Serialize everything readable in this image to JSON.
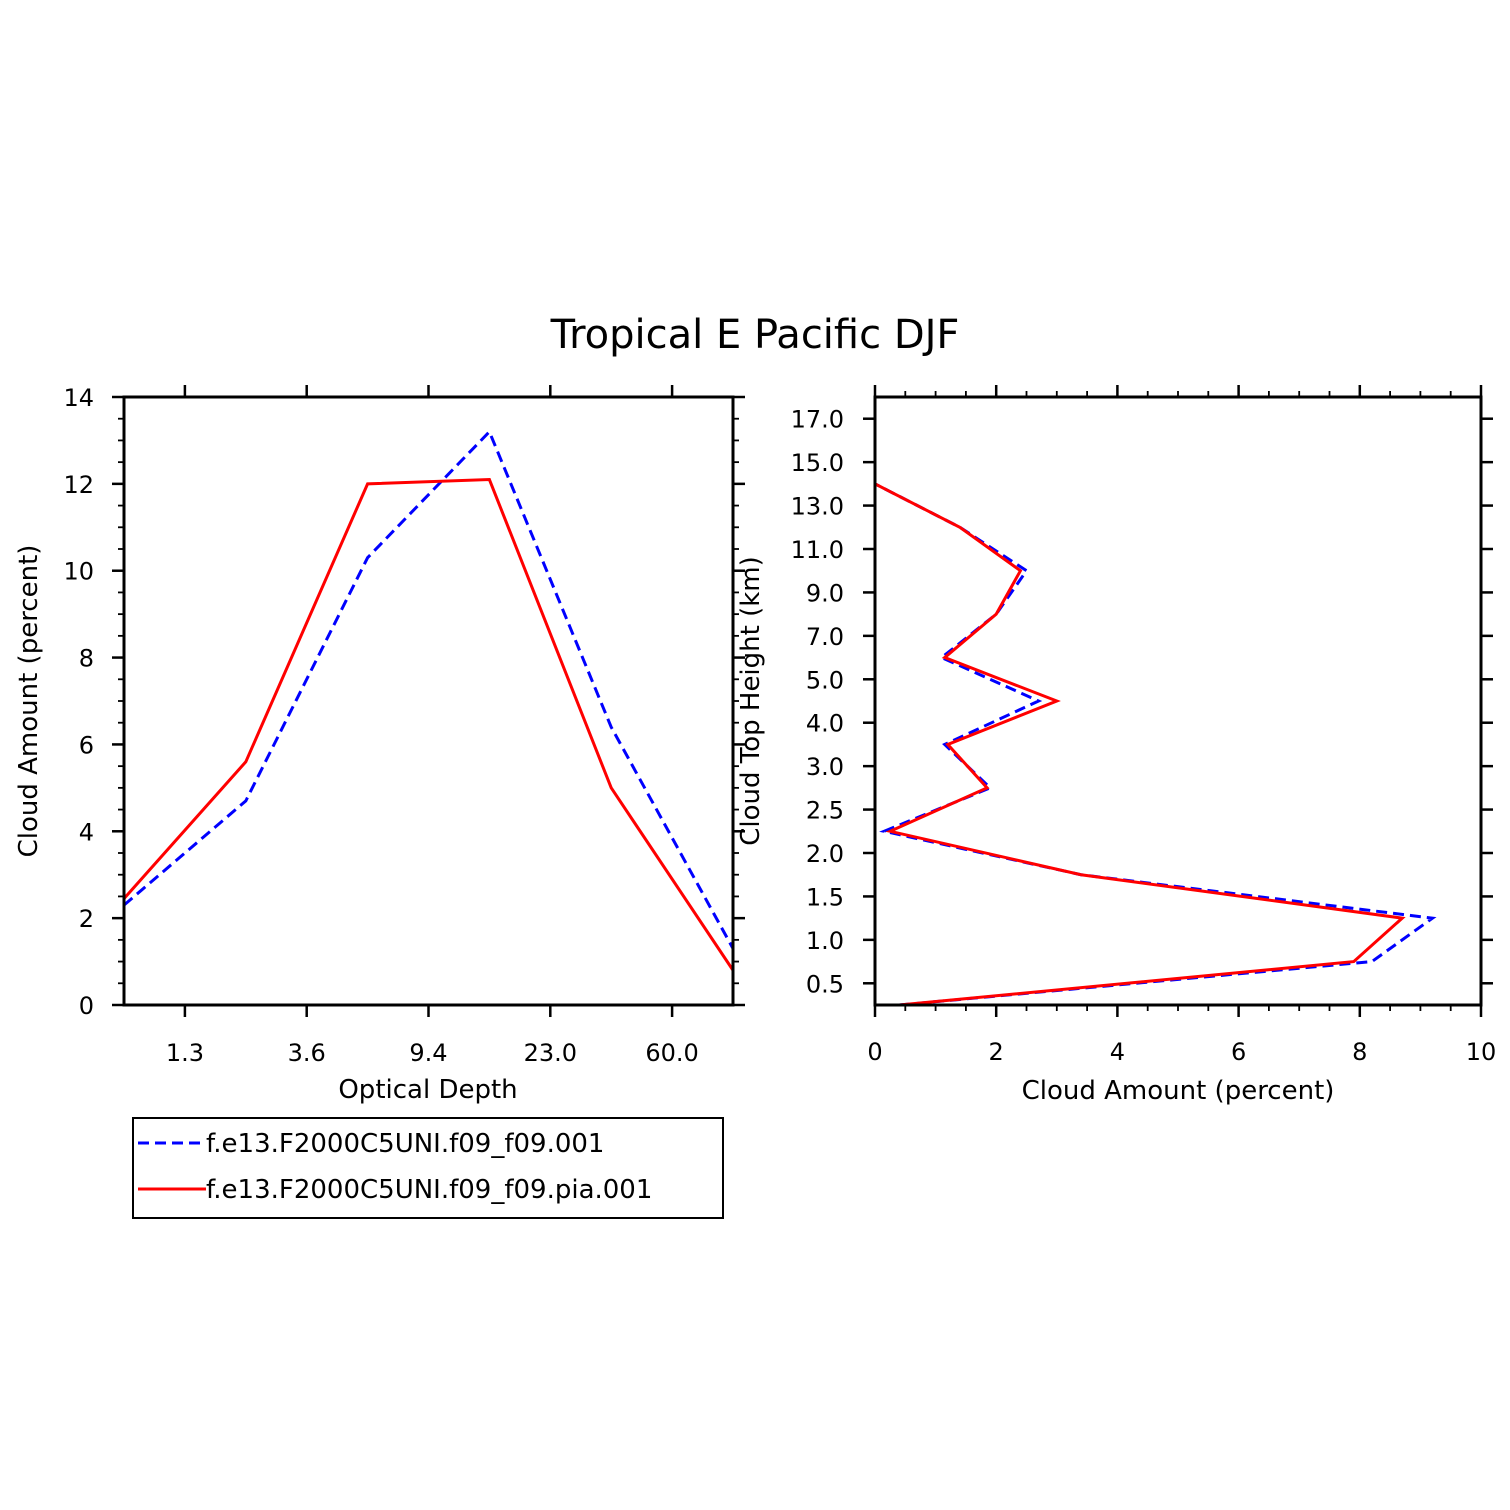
{
  "title": "Tropical E Pacific DJF",
  "colors": {
    "series_dashed": "#0000ff",
    "series_solid": "#ff0000",
    "axes": "#000000"
  },
  "chart_data": [
    {
      "type": "line",
      "name": "optical-depth-panel",
      "xlabel": "Optical Depth",
      "ylabel": "Cloud Amount (percent)",
      "x_index": [
        0,
        1,
        2,
        3,
        4,
        5
      ],
      "x_tick_labels": [
        {
          "at": 0.5,
          "label": "1.3"
        },
        {
          "at": 1.5,
          "label": "3.6"
        },
        {
          "at": 2.5,
          "label": "9.4"
        },
        {
          "at": 3.5,
          "label": "23.0"
        },
        {
          "at": 4.5,
          "label": "60.0"
        }
      ],
      "xlim": [
        0,
        5
      ],
      "ylim": [
        0,
        14
      ],
      "y_ticks": [
        0,
        2,
        4,
        6,
        8,
        10,
        12,
        14
      ],
      "series": [
        {
          "name": "f.e13.F2000C5UNI.f09_f09.001",
          "style": "dashed",
          "color": "#0000ff",
          "values": [
            2.3,
            4.7,
            10.3,
            13.2,
            6.4,
            1.3
          ]
        },
        {
          "name": "f.e13.F2000C5UNI.f09_f09.pia.001",
          "style": "solid",
          "color": "#ff0000",
          "values": [
            2.45,
            5.6,
            12.0,
            12.1,
            5.0,
            0.8
          ]
        }
      ],
      "legend": [
        {
          "label": "f.e13.F2000C5UNI.f09_f09.001",
          "style": "dashed",
          "color": "#0000ff"
        },
        {
          "label": "f.e13.F2000C5UNI.f09_f09.pia.001",
          "style": "solid",
          "color": "#ff0000"
        }
      ]
    },
    {
      "type": "line",
      "name": "cloud-top-height-panel",
      "xlabel": "Cloud Amount (percent)",
      "ylabel": "Cloud Top Height (km)",
      "xlim": [
        0,
        10
      ],
      "x_ticks": [
        0,
        2,
        4,
        6,
        8,
        10
      ],
      "ylim": [
        0,
        14
      ],
      "y_tick_labels": [
        {
          "at": 0.5,
          "label": "0.5"
        },
        {
          "at": 1.5,
          "label": "1.0"
        },
        {
          "at": 2.5,
          "label": "1.5"
        },
        {
          "at": 3.5,
          "label": "2.0"
        },
        {
          "at": 4.5,
          "label": "2.5"
        },
        {
          "at": 5.5,
          "label": "3.0"
        },
        {
          "at": 6.5,
          "label": "4.0"
        },
        {
          "at": 7.5,
          "label": "5.0"
        },
        {
          "at": 8.5,
          "label": "7.0"
        },
        {
          "at": 9.5,
          "label": "9.0"
        },
        {
          "at": 10.5,
          "label": "11.0"
        },
        {
          "at": 11.5,
          "label": "13.0"
        },
        {
          "at": 12.5,
          "label": "15.0"
        },
        {
          "at": 13.5,
          "label": "17.0"
        }
      ],
      "y_index": [
        0,
        1,
        2,
        3,
        4,
        5,
        6,
        7,
        8,
        9,
        10,
        11,
        12,
        13,
        14
      ],
      "series": [
        {
          "name": "f.e13.F2000C5UNI.f09_f09.001",
          "style": "dashed",
          "color": "#0000ff",
          "values": [
            0.4,
            8.2,
            9.2,
            3.4,
            0.15,
            1.9,
            1.15,
            2.7,
            1.1,
            2.0,
            2.5,
            1.4,
            0.0,
            0.0,
            0.0
          ]
        },
        {
          "name": "f.e13.F2000C5UNI.f09_f09.pia.001",
          "style": "solid",
          "color": "#ff0000",
          "values": [
            0.4,
            7.9,
            8.7,
            3.4,
            0.25,
            1.85,
            1.2,
            3.0,
            1.15,
            2.0,
            2.4,
            1.4,
            0.0,
            0.0,
            0.0
          ]
        }
      ]
    }
  ]
}
